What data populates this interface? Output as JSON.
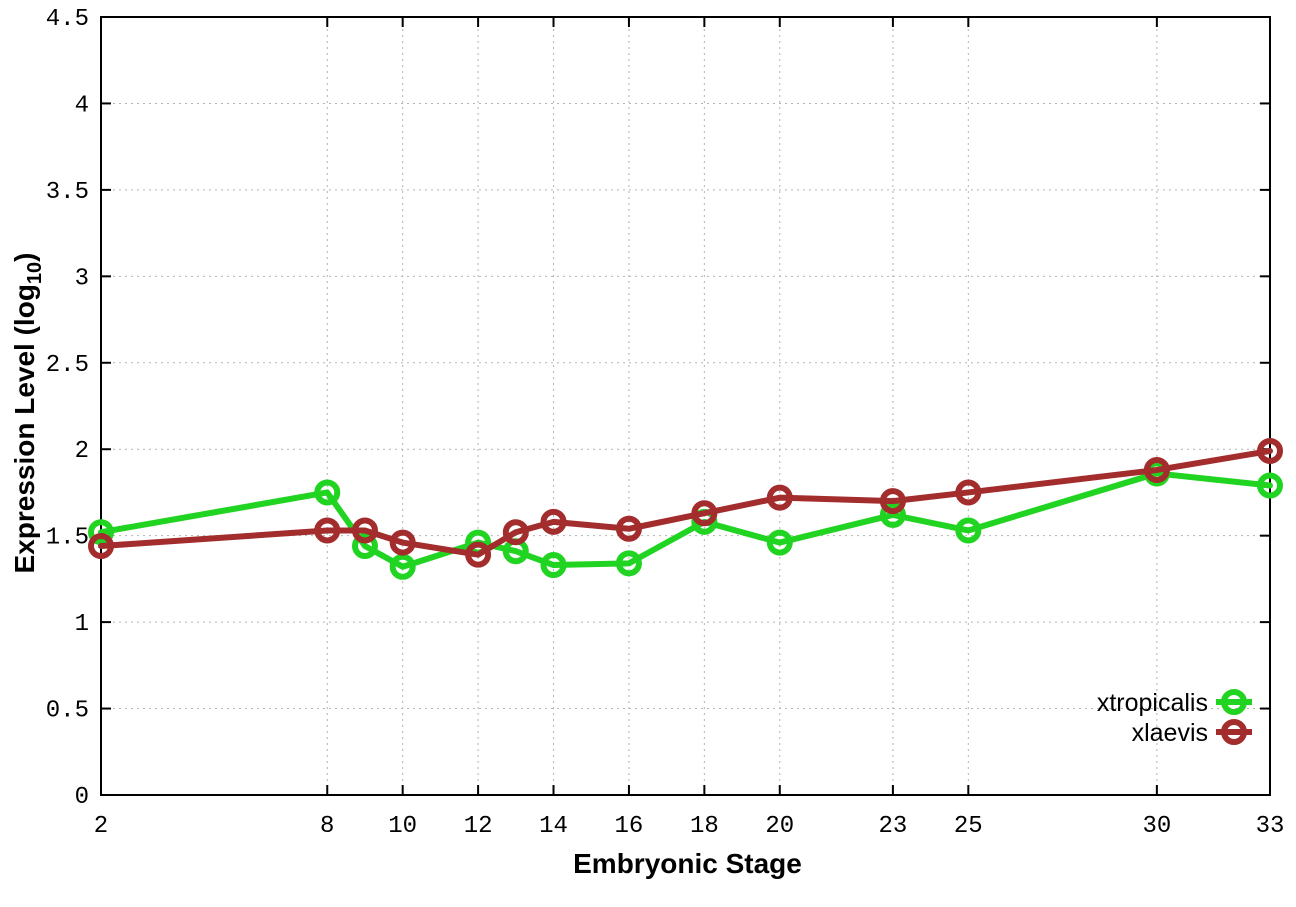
{
  "chart_data": {
    "type": "line",
    "title": "",
    "xlabel": "Embryonic Stage",
    "ylabel_main": "Expression Level (log",
    "ylabel_sub": "10",
    "ylabel_end": ")",
    "xlim": [
      2,
      33
    ],
    "ylim": [
      0,
      4.5
    ],
    "xticks": [
      2,
      8,
      10,
      12,
      14,
      16,
      18,
      20,
      23,
      25,
      30,
      33
    ],
    "yticks": [
      0,
      0.5,
      1,
      1.5,
      2,
      2.5,
      3,
      3.5,
      4,
      4.5
    ],
    "grid": true,
    "legend_position": "bottom-right-inside",
    "background_color": "#ffffff",
    "border_color": "#000000",
    "grid_color": "#b4b4b4",
    "x": [
      2,
      8,
      9,
      10,
      12,
      13,
      14,
      16,
      18,
      20,
      23,
      25,
      30,
      33
    ],
    "series": [
      {
        "name": "xtropicalis",
        "color": "#22d422",
        "values": [
          1.52,
          1.75,
          1.44,
          1.32,
          1.46,
          1.41,
          1.33,
          1.34,
          1.58,
          1.46,
          1.62,
          1.53,
          1.86,
          1.79
        ]
      },
      {
        "name": "xlaevis",
        "color": "#a32c2c",
        "values": [
          1.44,
          1.53,
          1.53,
          1.46,
          1.39,
          1.52,
          1.58,
          1.54,
          1.63,
          1.72,
          1.7,
          1.75,
          1.88,
          1.99
        ]
      }
    ]
  }
}
